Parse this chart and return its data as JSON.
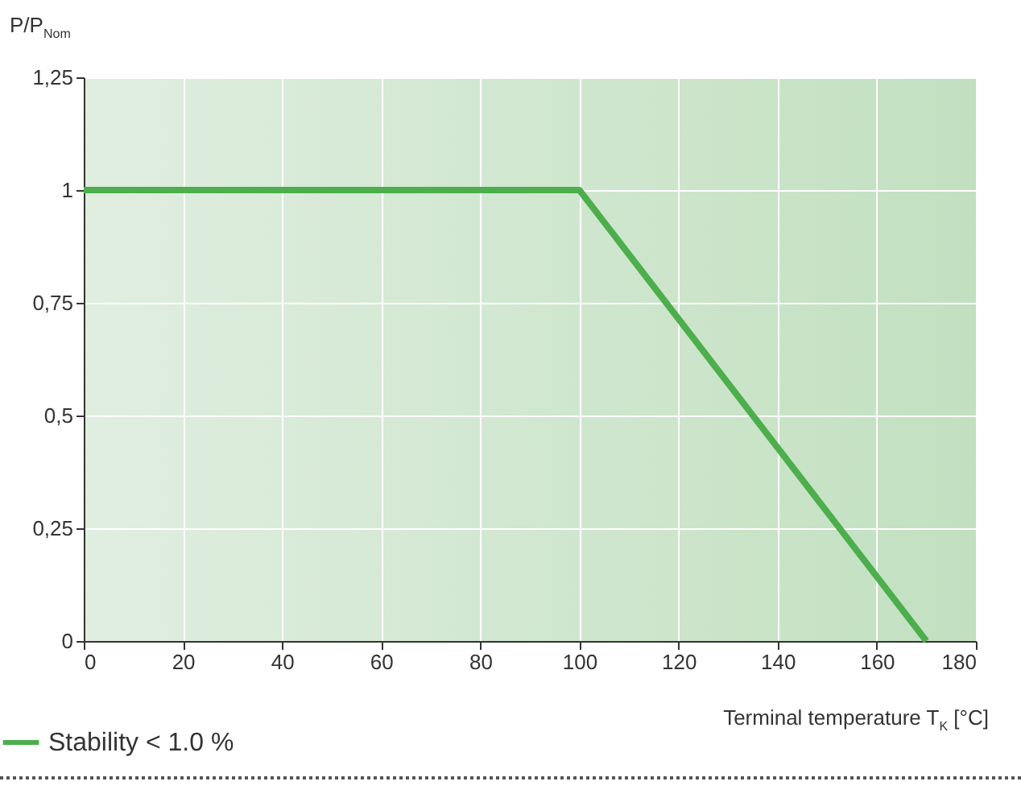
{
  "chart_data": {
    "type": "line",
    "xlabel": "Terminal temperature T$_{K}$ [°C]",
    "ylabel": "P/P$_{Nom}$",
    "x": [
      0,
      100,
      170
    ],
    "series": [
      {
        "name": "Stability < 1.0 %",
        "color": "#4cae4c",
        "values": [
          1,
          1,
          0
        ]
      }
    ],
    "xlim": [
      0,
      180
    ],
    "xticks": [
      0,
      20,
      40,
      60,
      80,
      100,
      120,
      140,
      160,
      180
    ],
    "ylim": [
      0,
      1.25
    ],
    "yticks": [
      0,
      {
        "value": 0.25,
        "label": "0,25"
      },
      {
        "value": 0.5,
        "label": "0,5"
      },
      {
        "value": 0.75,
        "label": "0,75"
      },
      1,
      {
        "value": 1.25,
        "label": "1,25"
      }
    ],
    "grid": true,
    "legend": "bottom left",
    "marker": "none",
    "line_style": "solid"
  }
}
